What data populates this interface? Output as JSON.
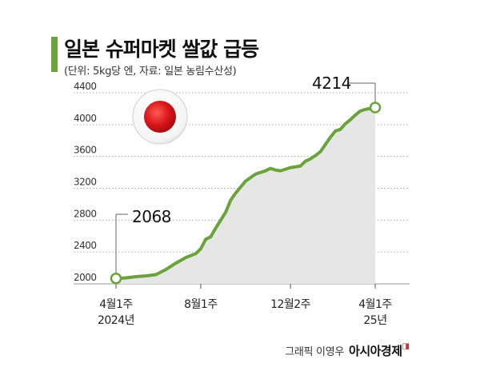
{
  "title": "일본 슈퍼마켓 쌀값 급등",
  "subtitle": "(단위: 5kg당 엔, 자료: 일본 농림수산성)",
  "credit": {
    "author": "그래픽 이영우",
    "brand": "아시아경제"
  },
  "colors": {
    "accent": "#6aa339",
    "area": "#e6e6e6",
    "grid": "#aaaaaa",
    "flag_red": "#d7141a"
  },
  "icon": "japan-flag-icon",
  "chart_data": {
    "type": "area",
    "y_ticks": [
      2000,
      2400,
      2800,
      3200,
      3600,
      4000,
      4400
    ],
    "ylim": [
      2000,
      4400
    ],
    "grid": true,
    "x_labels": [
      {
        "week": 0,
        "line1": "4월1주",
        "line2": "2024년"
      },
      {
        "week": 17,
        "line1": "8월1주",
        "line2": ""
      },
      {
        "week": 35,
        "line1": "12월2주",
        "line2": ""
      },
      {
        "week": 52,
        "line1": "4월1주",
        "line2": "25년"
      }
    ],
    "annotations": [
      {
        "label": "2068",
        "week": 0,
        "value": 2068
      },
      {
        "label": "4214",
        "week": 52,
        "value": 4214
      }
    ],
    "series": [
      {
        "values": [
          [
            0,
            2068
          ],
          [
            2,
            2075
          ],
          [
            4,
            2090
          ],
          [
            6,
            2100
          ],
          [
            8,
            2115
          ],
          [
            10,
            2180
          ],
          [
            12,
            2260
          ],
          [
            14,
            2330
          ],
          [
            16,
            2380
          ],
          [
            17,
            2440
          ],
          [
            18,
            2560
          ],
          [
            19,
            2590
          ],
          [
            20,
            2700
          ],
          [
            22,
            2900
          ],
          [
            23,
            3050
          ],
          [
            24,
            3140
          ],
          [
            26,
            3290
          ],
          [
            28,
            3380
          ],
          [
            30,
            3420
          ],
          [
            31,
            3450
          ],
          [
            32,
            3430
          ],
          [
            33,
            3420
          ],
          [
            35,
            3460
          ],
          [
            37,
            3480
          ],
          [
            38,
            3540
          ],
          [
            39,
            3570
          ],
          [
            40,
            3610
          ],
          [
            41,
            3660
          ],
          [
            42,
            3750
          ],
          [
            43,
            3840
          ],
          [
            44,
            3920
          ],
          [
            45,
            3940
          ],
          [
            46,
            4010
          ],
          [
            47,
            4060
          ],
          [
            48,
            4120
          ],
          [
            49,
            4170
          ],
          [
            50,
            4190
          ],
          [
            52,
            4214
          ]
        ]
      }
    ]
  }
}
